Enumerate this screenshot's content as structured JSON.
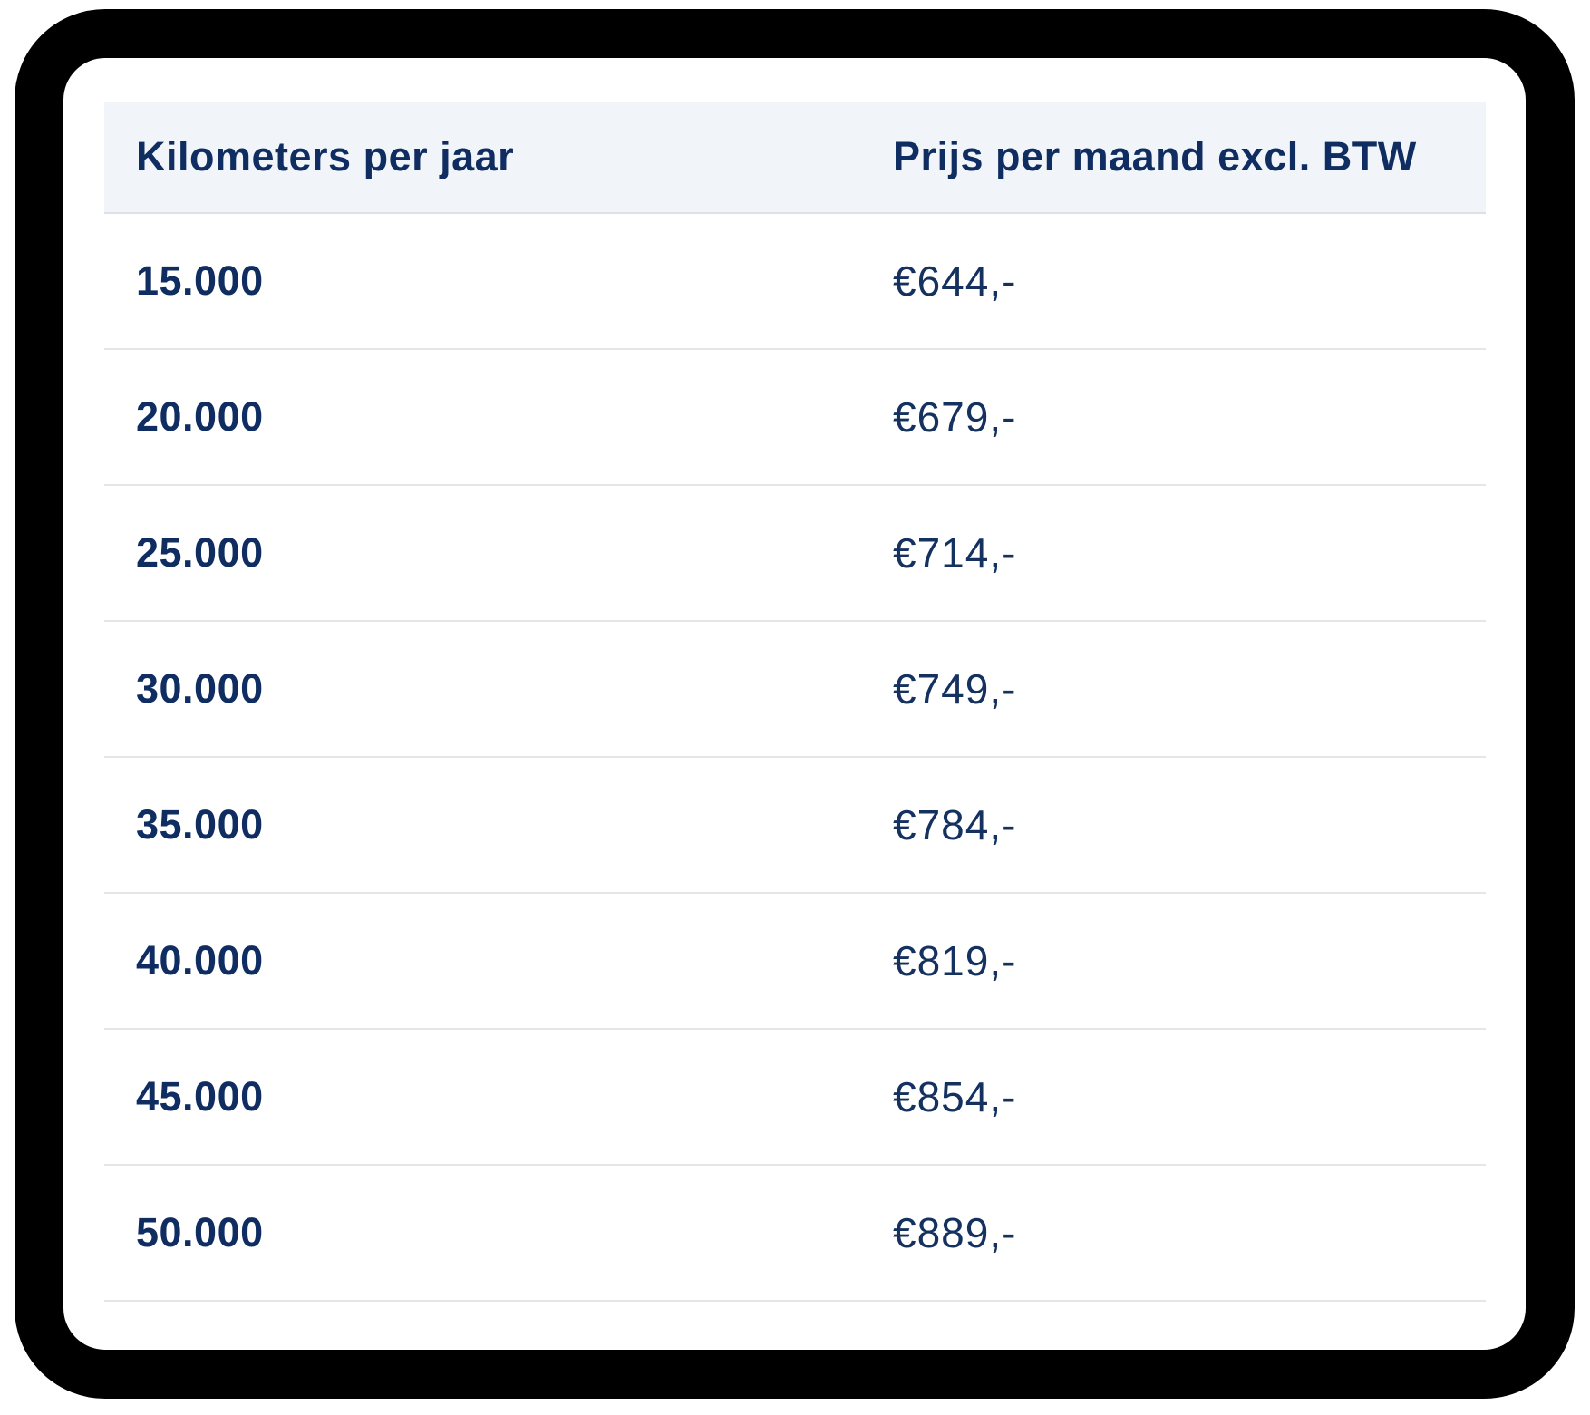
{
  "frame": {
    "border_color": "#000000",
    "background": "#ffffff"
  },
  "table": {
    "header": {
      "background": "#f1f5f9",
      "columns": [
        {
          "label": "Kilometers per jaar"
        },
        {
          "label": "Prijs per maand excl. BTW"
        }
      ]
    },
    "rows": [
      {
        "kilometers": "15.000",
        "price": "€644,-"
      },
      {
        "kilometers": "20.000",
        "price": "€679,-"
      },
      {
        "kilometers": "25.000",
        "price": "€714,-"
      },
      {
        "kilometers": "30.000",
        "price": "€749,-"
      },
      {
        "kilometers": "35.000",
        "price": "€784,-"
      },
      {
        "kilometers": "40.000",
        "price": "€819,-"
      },
      {
        "kilometers": "45.000",
        "price": "€854,-"
      },
      {
        "kilometers": "50.000",
        "price": "€889,-"
      }
    ],
    "colors": {
      "text_navy": "#0f2d61",
      "price_navy": "#14315f",
      "divider": "#e4e7ea",
      "header_divider": "#dde1e6"
    }
  }
}
